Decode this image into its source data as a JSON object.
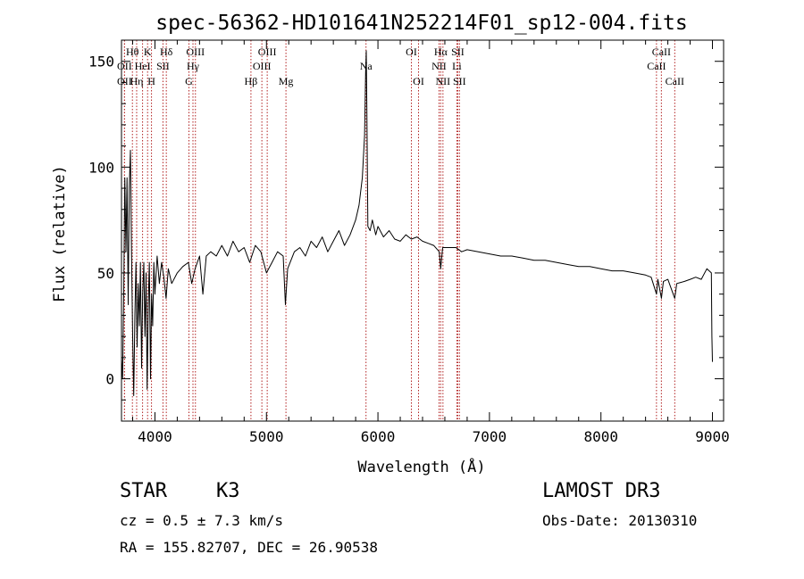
{
  "chart_data": {
    "type": "line",
    "title": "spec-56362-HD101641N252214F01_sp12-004.fits",
    "xlabel": "Wavelength (Å)",
    "ylabel": "Flux (relative)",
    "xlim": [
      3700,
      9100
    ],
    "ylim": [
      -20,
      160
    ],
    "x_ticks": [
      4000,
      5000,
      6000,
      7000,
      8000,
      9000
    ],
    "x_tick_labels": [
      "4000",
      "5000",
      "6000",
      "7000",
      "8000",
      "9000"
    ],
    "y_ticks": [
      0,
      50,
      100,
      150
    ],
    "y_tick_labels": [
      "0",
      "50",
      "100",
      "150"
    ],
    "series": [
      {
        "name": "flux",
        "color": "#000000",
        "points": [
          [
            3700,
            10
          ],
          [
            3710,
            0
          ],
          [
            3720,
            40
          ],
          [
            3730,
            95
          ],
          [
            3740,
            60
          ],
          [
            3750,
            95
          ],
          [
            3760,
            35
          ],
          [
            3770,
            90
          ],
          [
            3780,
            108
          ],
          [
            3790,
            60
          ],
          [
            3800,
            20
          ],
          [
            3810,
            -8
          ],
          [
            3820,
            30
          ],
          [
            3830,
            55
          ],
          [
            3840,
            15
          ],
          [
            3850,
            45
          ],
          [
            3860,
            25
          ],
          [
            3870,
            55
          ],
          [
            3880,
            5
          ],
          [
            3890,
            40
          ],
          [
            3900,
            55
          ],
          [
            3910,
            20
          ],
          [
            3920,
            50
          ],
          [
            3930,
            -5
          ],
          [
            3940,
            35
          ],
          [
            3950,
            55
          ],
          [
            3960,
            0
          ],
          [
            3970,
            40
          ],
          [
            3980,
            25
          ],
          [
            3990,
            55
          ],
          [
            4000,
            40
          ],
          [
            4020,
            58
          ],
          [
            4040,
            45
          ],
          [
            4060,
            55
          ],
          [
            4080,
            48
          ],
          [
            4100,
            38
          ],
          [
            4120,
            52
          ],
          [
            4150,
            45
          ],
          [
            4200,
            50
          ],
          [
            4250,
            53
          ],
          [
            4300,
            55
          ],
          [
            4330,
            45
          ],
          [
            4360,
            52
          ],
          [
            4400,
            58
          ],
          [
            4430,
            40
          ],
          [
            4460,
            58
          ],
          [
            4500,
            60
          ],
          [
            4550,
            58
          ],
          [
            4600,
            63
          ],
          [
            4650,
            58
          ],
          [
            4700,
            65
          ],
          [
            4750,
            60
          ],
          [
            4800,
            62
          ],
          [
            4850,
            55
          ],
          [
            4900,
            63
          ],
          [
            4950,
            60
          ],
          [
            5000,
            50
          ],
          [
            5050,
            55
          ],
          [
            5100,
            60
          ],
          [
            5150,
            58
          ],
          [
            5170,
            35
          ],
          [
            5190,
            52
          ],
          [
            5250,
            60
          ],
          [
            5300,
            62
          ],
          [
            5350,
            58
          ],
          [
            5400,
            65
          ],
          [
            5450,
            62
          ],
          [
            5500,
            67
          ],
          [
            5550,
            60
          ],
          [
            5600,
            65
          ],
          [
            5650,
            70
          ],
          [
            5700,
            63
          ],
          [
            5750,
            68
          ],
          [
            5800,
            75
          ],
          [
            5830,
            82
          ],
          [
            5860,
            95
          ],
          [
            5880,
            115
          ],
          [
            5890,
            145
          ],
          [
            5895,
            155
          ],
          [
            5900,
            130
          ],
          [
            5910,
            72
          ],
          [
            5930,
            70
          ],
          [
            5950,
            75
          ],
          [
            5980,
            68
          ],
          [
            6000,
            72
          ],
          [
            6050,
            67
          ],
          [
            6100,
            70
          ],
          [
            6150,
            66
          ],
          [
            6200,
            65
          ],
          [
            6250,
            68
          ],
          [
            6300,
            66
          ],
          [
            6350,
            67
          ],
          [
            6400,
            65
          ],
          [
            6450,
            64
          ],
          [
            6500,
            63
          ],
          [
            6550,
            60
          ],
          [
            6563,
            52
          ],
          [
            6580,
            62
          ],
          [
            6650,
            62
          ],
          [
            6700,
            62
          ],
          [
            6750,
            60
          ],
          [
            6800,
            61
          ],
          [
            6900,
            60
          ],
          [
            7000,
            59
          ],
          [
            7100,
            58
          ],
          [
            7200,
            58
          ],
          [
            7300,
            57
          ],
          [
            7400,
            56
          ],
          [
            7500,
            56
          ],
          [
            7600,
            55
          ],
          [
            7700,
            54
          ],
          [
            7800,
            53
          ],
          [
            7900,
            53
          ],
          [
            8000,
            52
          ],
          [
            8100,
            51
          ],
          [
            8200,
            51
          ],
          [
            8300,
            50
          ],
          [
            8400,
            49
          ],
          [
            8450,
            48
          ],
          [
            8498,
            40
          ],
          [
            8510,
            47
          ],
          [
            8542,
            38
          ],
          [
            8560,
            46
          ],
          [
            8600,
            47
          ],
          [
            8662,
            38
          ],
          [
            8680,
            45
          ],
          [
            8750,
            46
          ],
          [
            8800,
            47
          ],
          [
            8850,
            48
          ],
          [
            8900,
            47
          ],
          [
            8950,
            52
          ],
          [
            8990,
            50
          ],
          [
            8995,
            20
          ],
          [
            9000,
            8
          ]
        ]
      }
    ],
    "spectral_lines": [
      {
        "label": "OII",
        "wavelength": 3727,
        "row": 2
      },
      {
        "label": "Hθ",
        "wavelength": 3798,
        "row": 1
      },
      {
        "label": "OII",
        "wavelength": 3727,
        "row": 3
      },
      {
        "label": "Hη",
        "wavelength": 3836,
        "row": 3
      },
      {
        "label": "HeI",
        "wavelength": 3889,
        "row": 2
      },
      {
        "label": "K",
        "wavelength": 3934,
        "row": 1
      },
      {
        "label": "H",
        "wavelength": 3969,
        "row": 3
      },
      {
        "label": "SII",
        "wavelength": 4072,
        "row": 2
      },
      {
        "label": "Hδ",
        "wavelength": 4102,
        "row": 1
      },
      {
        "label": "G",
        "wavelength": 4305,
        "row": 3
      },
      {
        "label": "OIII",
        "wavelength": 4363,
        "row": 1
      },
      {
        "label": "Hγ",
        "wavelength": 4341,
        "row": 2
      },
      {
        "label": "Hβ",
        "wavelength": 4861,
        "row": 3
      },
      {
        "label": "OIII",
        "wavelength": 5007,
        "row": 1
      },
      {
        "label": "OIII",
        "wavelength": 4959,
        "row": 2
      },
      {
        "label": "Mg",
        "wavelength": 5175,
        "row": 3
      },
      {
        "label": "Na",
        "wavelength": 5893,
        "row": 2
      },
      {
        "label": "OI",
        "wavelength": 6300,
        "row": 1
      },
      {
        "label": "OI",
        "wavelength": 6364,
        "row": 3
      },
      {
        "label": "Hα",
        "wavelength": 6563,
        "row": 1
      },
      {
        "label": "NII",
        "wavelength": 6548,
        "row": 2
      },
      {
        "label": "NII",
        "wavelength": 6583,
        "row": 3
      },
      {
        "label": "SII",
        "wavelength": 6716,
        "row": 1
      },
      {
        "label": "Li",
        "wavelength": 6708,
        "row": 2
      },
      {
        "label": "SII",
        "wavelength": 6731,
        "row": 3
      },
      {
        "label": "CaII",
        "wavelength": 8542,
        "row": 1
      },
      {
        "label": "CaII",
        "wavelength": 8498,
        "row": 2
      },
      {
        "label": "CaII",
        "wavelength": 8662,
        "row": 3
      }
    ],
    "colors": {
      "line": "#000000",
      "marker": "#b22222"
    }
  },
  "info": {
    "object_class": "STAR",
    "subclass": "K3",
    "survey": "LAMOST DR3",
    "redshift": "cz = 0.5 ± 7.3 km/s",
    "obs_date": "Obs-Date: 20130310",
    "coords": "RA = 155.82707, DEC =  26.90538"
  }
}
